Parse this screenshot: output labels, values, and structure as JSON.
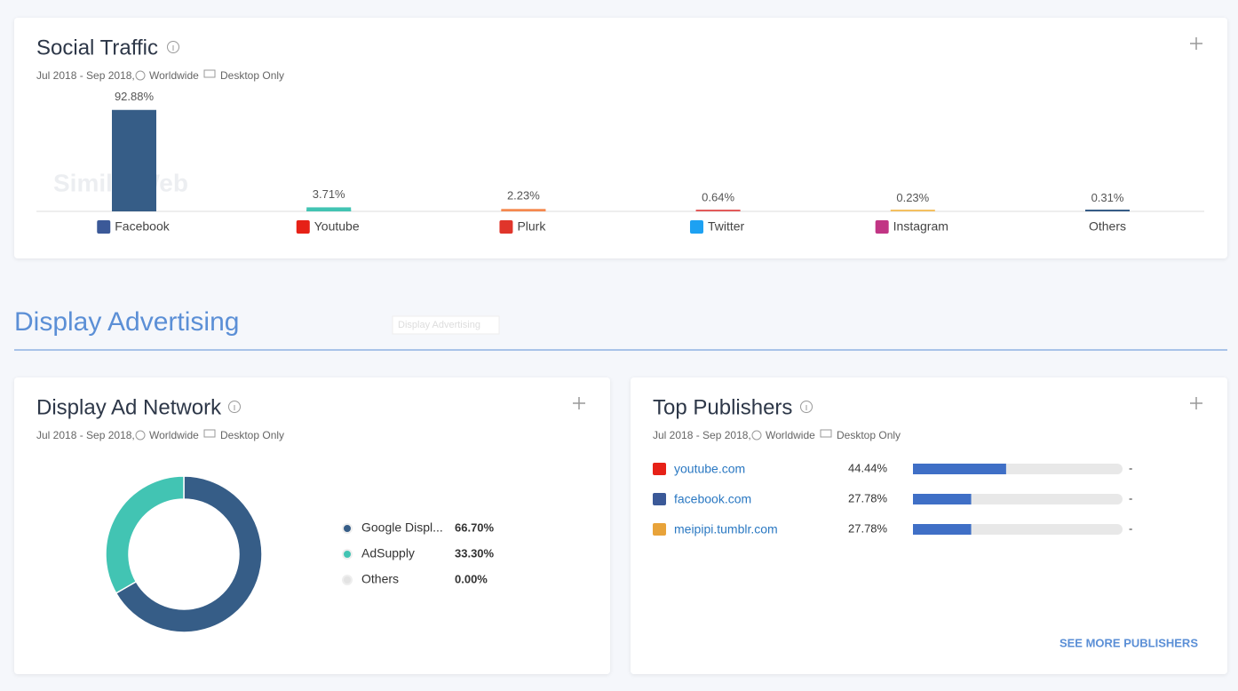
{
  "social_traffic": {
    "title": "Social Traffic",
    "date_range": "Jul 2018 - Sep 2018,",
    "region": "Worldwide",
    "device": "Desktop Only",
    "watermark": "SimilarWeb",
    "chart": {
      "type": "bar",
      "categories": [
        "Facebook",
        "Youtube",
        "Plurk",
        "Twitter",
        "Instagram",
        "Others"
      ],
      "values": [
        92.88,
        3.71,
        2.23,
        0.64,
        0.23,
        0.31
      ],
      "value_labels": [
        "92.88%",
        "3.71%",
        "2.23%",
        "0.64%",
        "0.23%",
        "0.31%"
      ],
      "colors": [
        "#365d87",
        "#42c4b3",
        "#f5894f",
        "#e35b5b",
        "#f4c060",
        "#365d87"
      ]
    }
  },
  "section_title": "Display Advertising",
  "tooltip": "Display Advertising",
  "display_ad_network": {
    "title": "Display Ad Network",
    "date_range": "Jul 2018 - Sep 2018,",
    "region": "Worldwide",
    "device": "Desktop Only",
    "chart": {
      "type": "donut",
      "categories": [
        "Google Displ...",
        "AdSupply",
        "Others"
      ],
      "values": [
        66.7,
        33.3,
        0
      ],
      "value_labels": [
        "66.70%",
        "33.30%",
        "0.00%"
      ],
      "colors": [
        "#365d87",
        "#42c4b3",
        "#e3e3e3"
      ]
    }
  },
  "top_publishers": {
    "title": "Top Publishers",
    "date_range": "Jul 2018 - Sep 2018,",
    "region": "Worldwide",
    "device": "Desktop Only",
    "rows": [
      {
        "site": "youtube.com",
        "share": 44.44,
        "share_label": "44.44%",
        "change": "-"
      },
      {
        "site": "facebook.com",
        "share": 27.78,
        "share_label": "27.78%",
        "change": "-"
      },
      {
        "site": "meipipi.tumblr.com",
        "share": 27.78,
        "share_label": "27.78%",
        "change": "-"
      }
    ],
    "link": "SEE MORE PUBLISHERS"
  }
}
